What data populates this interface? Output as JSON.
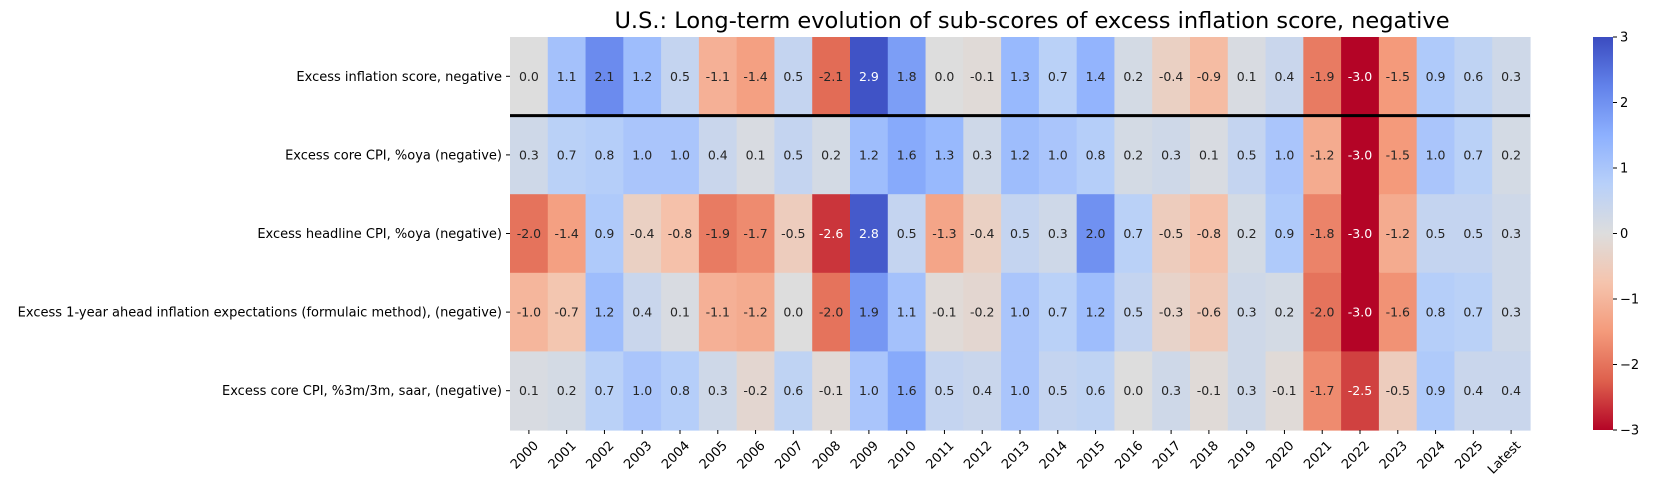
{
  "chart_data": {
    "type": "heatmap",
    "title": "U.S.: Long-term evolution of sub-scores of excess inflation score, negative",
    "xlabel": "",
    "ylabel": "",
    "columns": [
      "2000",
      "2001",
      "2002",
      "2003",
      "2004",
      "2005",
      "2006",
      "2007",
      "2008",
      "2009",
      "2010",
      "2011",
      "2012",
      "2013",
      "2014",
      "2015",
      "2016",
      "2017",
      "2018",
      "2019",
      "2020",
      "2021",
      "2022",
      "2023",
      "2024",
      "2025",
      "Latest"
    ],
    "rows": [
      "Excess inflation score, negative",
      "Excess core CPI, %oya (negative)",
      "Excess headline CPI, %oya (negative)",
      "Excess 1-year ahead inflation expectations (formulaic method), (negative)",
      "Excess core CPI, %3m/3m, saar, (negative)"
    ],
    "values": [
      [
        -0.0,
        1.1,
        2.1,
        1.2,
        0.5,
        -1.1,
        -1.4,
        0.5,
        -2.1,
        2.9,
        1.8,
        -0.0,
        -0.1,
        1.3,
        0.7,
        1.4,
        0.2,
        -0.4,
        -0.9,
        0.1,
        0.4,
        -1.9,
        -3.0,
        -1.5,
        0.9,
        0.6,
        0.3
      ],
      [
        0.3,
        0.7,
        0.8,
        1.0,
        1.0,
        0.4,
        0.1,
        0.5,
        0.2,
        1.2,
        1.6,
        1.3,
        0.3,
        1.2,
        1.0,
        0.8,
        0.2,
        0.3,
        0.1,
        0.5,
        1.0,
        -1.2,
        -3.0,
        -1.5,
        1.0,
        0.7,
        0.2
      ],
      [
        -2.0,
        -1.4,
        0.9,
        -0.4,
        -0.8,
        -1.9,
        -1.7,
        -0.5,
        -2.6,
        2.8,
        0.5,
        -1.3,
        -0.4,
        0.5,
        0.3,
        2.0,
        0.7,
        -0.5,
        -0.8,
        0.2,
        0.9,
        -1.8,
        -3.0,
        -1.2,
        0.5,
        0.5,
        0.3
      ],
      [
        -1.0,
        -0.7,
        1.2,
        0.4,
        0.1,
        -1.1,
        -1.2,
        0.0,
        -2.0,
        1.9,
        1.1,
        -0.1,
        -0.2,
        1.0,
        0.7,
        1.2,
        0.5,
        -0.3,
        -0.6,
        0.3,
        0.2,
        -2.0,
        -3.0,
        -1.6,
        0.8,
        0.7,
        0.3
      ],
      [
        0.1,
        0.2,
        0.7,
        1.0,
        0.8,
        0.3,
        -0.2,
        0.6,
        -0.1,
        1.0,
        1.6,
        0.5,
        0.4,
        1.0,
        0.5,
        0.6,
        0.0,
        0.3,
        -0.1,
        0.3,
        -0.1,
        -1.7,
        -2.5,
        -0.5,
        0.9,
        0.4,
        0.4
      ]
    ],
    "colormap": "coolwarm_r",
    "vmin": -3,
    "vmax": 3,
    "colorbar_ticks": [
      3,
      2,
      1,
      0,
      -1,
      -2,
      -3
    ],
    "annotation_decimals": 1,
    "separator_after_row": 0
  }
}
